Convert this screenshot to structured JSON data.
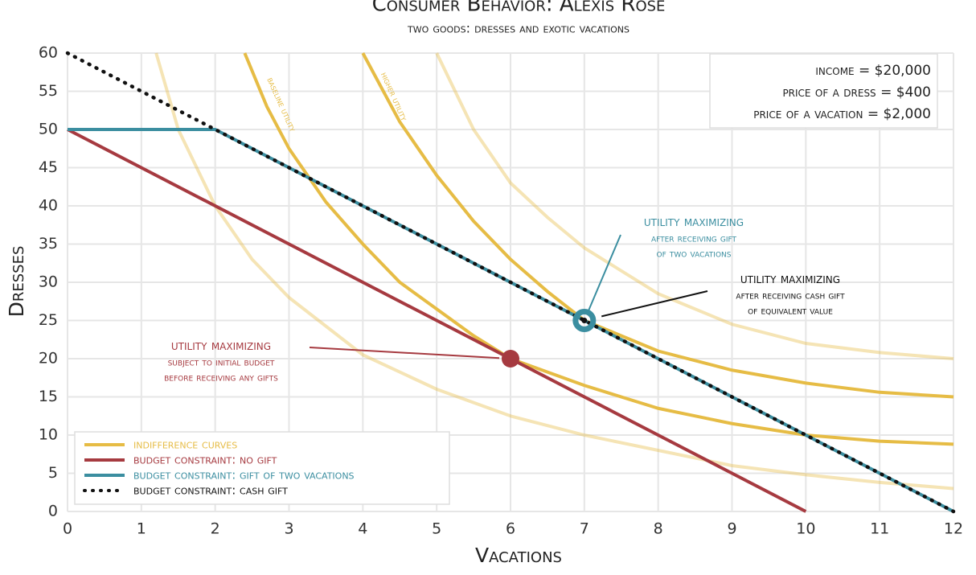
{
  "chart_data": {
    "type": "line",
    "title": "Consumer Behavior: Alexis Rose",
    "subtitle": "two goods: dresses and exotic vacations",
    "x_label": "Vacations",
    "y_label": "Dresses",
    "xlim": [
      0,
      12
    ],
    "xticks": [
      0,
      1,
      2,
      3,
      4,
      5,
      6,
      7,
      8,
      9,
      10,
      11,
      12
    ],
    "ylim": [
      0,
      60
    ],
    "yticks": [
      0,
      5,
      10,
      15,
      20,
      25,
      30,
      35,
      40,
      45,
      50,
      55,
      60
    ],
    "grid": true,
    "legend": "lower left",
    "indifference": {
      "name": "indifference curves",
      "color": "#e6bc45",
      "curves": [
        {
          "x": [
            1.2,
            1.5,
            2,
            2.5,
            3,
            4,
            5,
            6,
            7,
            8,
            9,
            10,
            11,
            12
          ],
          "values": [
            60,
            50,
            40,
            33,
            28,
            20.5,
            16,
            12.5,
            10,
            8,
            6,
            4.8,
            3.8,
            3
          ],
          "opacity": 0.4
        },
        {
          "x": [
            2.4,
            2.7,
            3,
            3.5,
            4,
            4.5,
            5,
            5.5,
            6,
            7,
            8,
            9,
            10,
            11,
            12
          ],
          "values": [
            60,
            53,
            47.5,
            40.5,
            35,
            30,
            26.5,
            23,
            20,
            16.5,
            13.5,
            11.5,
            10,
            9.2,
            8.8
          ],
          "label": "baseline utility"
        },
        {
          "x": [
            4,
            4.5,
            5,
            5.5,
            6,
            6.5,
            7,
            8,
            9,
            10,
            11,
            12
          ],
          "values": [
            60,
            51,
            44,
            38,
            33,
            28.8,
            25,
            21,
            18.5,
            16.8,
            15.6,
            15
          ],
          "label": "higher utility"
        },
        {
          "x": [
            5,
            5.5,
            6,
            6.5,
            7,
            8,
            9,
            10,
            11,
            12
          ],
          "values": [
            60,
            50,
            43,
            38.5,
            34.5,
            28.5,
            24.5,
            22,
            20.8,
            20
          ],
          "opacity": 0.4
        }
      ]
    },
    "series": [
      {
        "name": "budget constraint: no gift",
        "color": "#a63a40",
        "dash": "solid",
        "x": [
          0,
          10
        ],
        "values": [
          50,
          0
        ]
      },
      {
        "name": "budget constraint: gift of two vacations",
        "color": "#3b8ea0",
        "dash": "solid",
        "x": [
          0,
          2,
          12
        ],
        "values": [
          50,
          50,
          0
        ]
      },
      {
        "name": "budget constraint: cash gift",
        "color": "#111111",
        "dash": "dotted",
        "x": [
          0,
          12
        ],
        "values": [
          60,
          0
        ]
      }
    ],
    "points": [
      {
        "x": 6,
        "y": 20,
        "color": "#a63a40",
        "annotation": [
          "utility maximizing",
          "subject to initial budget",
          "before receiving any gifts"
        ]
      },
      {
        "x": 7,
        "y": 25,
        "color": "#3b8ea0",
        "annotation": [
          "utility maximizing",
          "after receiving gift",
          "of two vacations"
        ]
      },
      {
        "x": 7,
        "y": 25,
        "color": "#111111",
        "annotation": [
          "utility maximizing",
          "after receiving cash gift",
          "of equivalent value"
        ]
      }
    ],
    "info": [
      "income = $20,000",
      "price of a dress = $400",
      "price of a vacation = $2,000"
    ]
  }
}
